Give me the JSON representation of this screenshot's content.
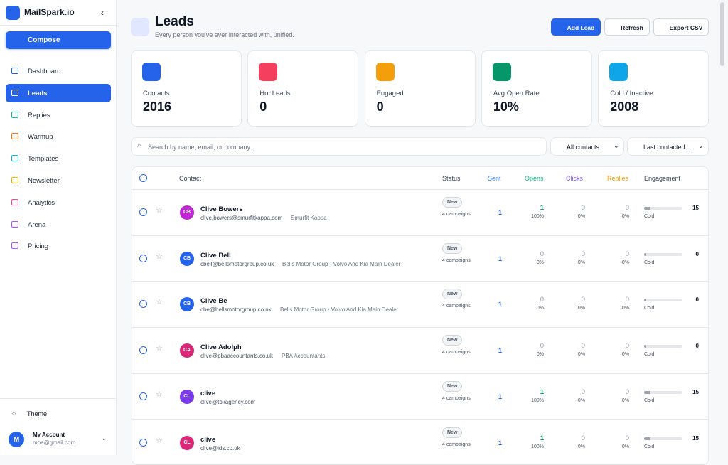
{
  "sidebar": {
    "brand": "MailSpark.io",
    "compose": "Compose",
    "nav": [
      "Dashboard",
      "Leads",
      "Replies",
      "Warmup",
      "Templates",
      "Newsletter",
      "Analytics",
      "Arena",
      "Pricing"
    ],
    "nav_colors": [
      "#2563eb",
      "#2563eb",
      "#10b981",
      "#f97316",
      "#06b6d4",
      "#eab308",
      "#ec4899",
      "#a855f7",
      "#a855f7"
    ],
    "theme": "Theme",
    "account": {
      "initial": "M",
      "name": "My Account",
      "email": "moe@gmail.com"
    }
  },
  "header": {
    "title": "Leads",
    "subtitle": "Every person you've ever interacted with, unified.",
    "buttons": [
      "Add Lead",
      "Refresh",
      "Export CSV"
    ]
  },
  "stats": [
    {
      "label": "Contacts",
      "value": 2016,
      "color": "#2563eb"
    },
    {
      "label": "Hot Leads",
      "value": 0,
      "color": "#f43f5e"
    },
    {
      "label": "Engaged",
      "value": 0,
      "color": "#f59e0b"
    },
    {
      "label": "Avg Open Rate",
      "value": "10%",
      "color": "#059669"
    },
    {
      "label": "Cold / Inactive",
      "value": 2008,
      "color": "#0ea5e9"
    }
  ],
  "filters": {
    "search": "Search by name, email, or company...",
    "contacts": "All contacts",
    "sort": "Last contacted..."
  },
  "table": {
    "columns": [
      "Contact",
      "Status",
      "Sent",
      "Opens",
      "Clicks",
      "Replies",
      "Engagement"
    ],
    "rows": [
      {
        "initials": "CB",
        "avatar_color": "#c026d3",
        "name": "Clive Bowers",
        "email": "clive.bowers@smurfitkappa.com",
        "company": "Smurfit Kappa",
        "status": "New",
        "campaigns": "4 campaigns",
        "sent": 1,
        "opens": 1,
        "opens_rate": "100%",
        "clicks": 0,
        "clicks_rate": "0%",
        "replies": 0,
        "replies_rate": "0%",
        "score": 15,
        "level": "Cold"
      },
      {
        "initials": "CB",
        "avatar_color": "#2563eb",
        "name": "Clive Bell",
        "email": "cbell@bellsmotorgroup.co.uk",
        "company": "Bells Motor Group - Volvo And Kia Main Dealer",
        "status": "New",
        "campaigns": "4 campaigns",
        "sent": 1,
        "opens": 0,
        "opens_rate": "0%",
        "clicks": 0,
        "clicks_rate": "0%",
        "replies": 0,
        "replies_rate": "0%",
        "score": 0,
        "level": "Cold"
      },
      {
        "initials": "CB",
        "avatar_color": "#2563eb",
        "name": "Clive Be",
        "email": "cbe@bellsmotorgroup.co.uk",
        "company": "Bells Motor Group - Volvo And Kia Main Dealer",
        "status": "New",
        "campaigns": "4 campaigns",
        "sent": 1,
        "opens": 0,
        "opens_rate": "0%",
        "clicks": 0,
        "clicks_rate": "0%",
        "replies": 0,
        "replies_rate": "0%",
        "score": 0,
        "level": "Cold"
      },
      {
        "initials": "CA",
        "avatar_color": "#db2777",
        "name": "Clive Adolph",
        "email": "clive@pbaaccountants.co.uk",
        "company": "PBA Accountants",
        "status": "New",
        "campaigns": "4 campaigns",
        "sent": 1,
        "opens": 0,
        "opens_rate": "0%",
        "clicks": 0,
        "clicks_rate": "0%",
        "replies": 0,
        "replies_rate": "0%",
        "score": 0,
        "level": "Cold"
      },
      {
        "initials": "CL",
        "avatar_color": "#7c3aed",
        "name": "clive",
        "email": "clive@tbkagency.com",
        "status": "New",
        "campaigns": "4 campaigns",
        "sent": 1,
        "opens": 1,
        "opens_rate": "100%",
        "clicks": 0,
        "clicks_rate": "0%",
        "replies": 0,
        "replies_rate": "0%",
        "score": 15,
        "level": "Cold"
      },
      {
        "initials": "CL",
        "avatar_color": "#db2777",
        "name": "clive",
        "email": "clive@ids.co.uk",
        "status": "New",
        "campaigns": "4 campaigns",
        "sent": 1,
        "opens": 1,
        "opens_rate": "100%",
        "clicks": 0,
        "clicks_rate": "0%",
        "replies": 0,
        "replies_rate": "0%",
        "score": 15,
        "level": "Cold"
      }
    ]
  }
}
